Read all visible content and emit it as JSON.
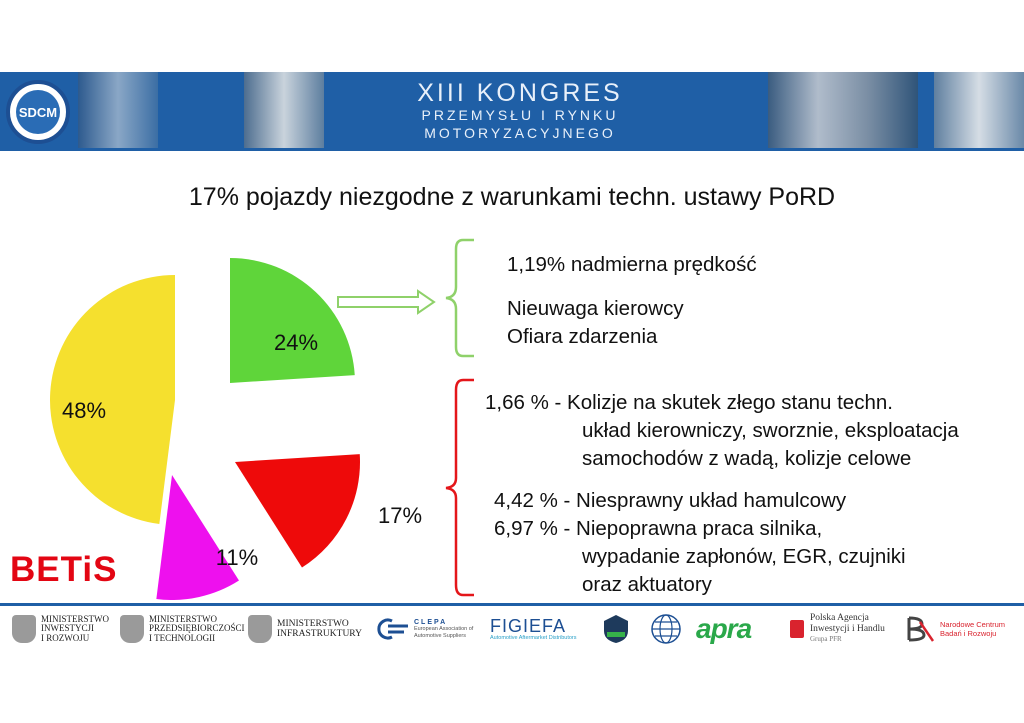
{
  "header": {
    "logo_text": "SDCM",
    "banner_line1": "XIII KONGRES",
    "banner_line2": "PRZEMYSŁU I RYNKU",
    "banner_line3": "MOTORYZACYJNEGO"
  },
  "title": "17% pojazdy niezgodne z warunkami techn. ustawy PoRD",
  "chart_data": {
    "type": "pie",
    "title": "17% pojazdy niezgodne z warunkami techn. ustawy PoRD",
    "slices": [
      {
        "label": "24%",
        "value": 24,
        "color": "#5fd53a"
      },
      {
        "label": "17%",
        "value": 17,
        "color": "#ee0a0a"
      },
      {
        "label": "11%",
        "value": 11,
        "color": "#ee10ee"
      },
      {
        "label": "48%",
        "value": 48,
        "color": "#f5e02e"
      }
    ],
    "exploded": true,
    "bracket_colors": {
      "green": "#8fd16a",
      "red": "#e4161a"
    }
  },
  "green_group": {
    "line1": "1,19% nadmierna prędkość",
    "line2": "Nieuwaga kierowcy",
    "line3": "Ofiara zdarzenia"
  },
  "red_group": {
    "line1": "1,66 % - Kolizje na skutek złego stanu techn.",
    "line2": "układ kierowniczy, sworznie, eksploatacja",
    "line3": "samochodów z wadą, kolizje celowe",
    "line4": "4,42 % - Niesprawny układ hamulcowy",
    "line5": "6,97 % - Niepoprawna praca silnika,",
    "line6": "wypadanie zapłonów, EGR, czujniki",
    "line7": "oraz aktuatory"
  },
  "brand": "BETiS",
  "footer": {
    "min1": [
      "MINISTERSTWO",
      "INWESTYCJI",
      "I ROZWOJU"
    ],
    "min2": [
      "MINISTERSTWO",
      "PRZEDSIĘBIORCZOŚCI",
      "I TECHNOLOGII"
    ],
    "min3": [
      "MINISTERSTWO",
      "INFRASTRUKTURY"
    ],
    "clepa": "CLEPA",
    "clepa_sub": "European Association of Automotive Suppliers",
    "figiefa": "FIGIEFA",
    "figiefa_sub": "Automotive Aftermarket Distributors",
    "apra": "apra",
    "paih": [
      "Polska Agencja",
      "Inwestycji i Handlu",
      "Grupa PFR"
    ],
    "ncbr": [
      "Narodowe Centrum",
      "Badań i Rozwoju"
    ]
  }
}
